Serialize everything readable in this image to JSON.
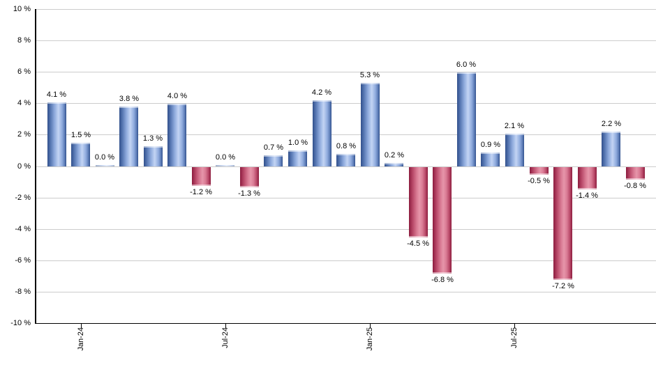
{
  "chart_data": {
    "type": "bar",
    "title": "",
    "description": "Monthly percentage returns bar chart, positive months blue, negative months red",
    "y_axis": {
      "unit": "%",
      "min": -10,
      "max": 10,
      "step": 2,
      "grid": true,
      "tick_labels": [
        "10 %",
        "8 %",
        "6 %",
        "4 %",
        "2 %",
        "0 %",
        "-2 %",
        "-4 %",
        "-6 %",
        "-8 %",
        "-10 %"
      ]
    },
    "x_axis": {
      "tick_labels": [
        {
          "bar_index": 1,
          "label": "Jan-24"
        },
        {
          "bar_index": 7,
          "label": "Jul-24"
        },
        {
          "bar_index": 13,
          "label": "Jan-25"
        },
        {
          "bar_index": 19,
          "label": "Jul-25"
        }
      ]
    },
    "bars": [
      {
        "value": 4.1,
        "label": "4.1 %"
      },
      {
        "value": 1.5,
        "label": "1.5 %"
      },
      {
        "value": 0.0,
        "label": "0.0 %"
      },
      {
        "value": 3.8,
        "label": "3.8 %"
      },
      {
        "value": 1.3,
        "label": "1.3 %"
      },
      {
        "value": 4.0,
        "label": "4.0 %"
      },
      {
        "value": -1.2,
        "label": "-1.2 %"
      },
      {
        "value": 0.0,
        "label": "0.0 %"
      },
      {
        "value": -1.3,
        "label": "-1.3 %"
      },
      {
        "value": 0.7,
        "label": "0.7 %"
      },
      {
        "value": 1.0,
        "label": "1.0 %"
      },
      {
        "value": 4.2,
        "label": "4.2 %"
      },
      {
        "value": 0.8,
        "label": "0.8 %"
      },
      {
        "value": 5.3,
        "label": "5.3 %"
      },
      {
        "value": 0.2,
        "label": "0.2 %"
      },
      {
        "value": -4.5,
        "label": "-4.5 %"
      },
      {
        "value": -6.8,
        "label": "-6.8 %"
      },
      {
        "value": 6.0,
        "label": "6.0 %"
      },
      {
        "value": 0.9,
        "label": "0.9 %"
      },
      {
        "value": 2.1,
        "label": "2.1 %"
      },
      {
        "value": -0.5,
        "label": "-0.5 %"
      },
      {
        "value": -7.2,
        "label": "-7.2 %"
      },
      {
        "value": -1.4,
        "label": "-1.4 %"
      },
      {
        "value": 2.2,
        "label": "2.2 %"
      },
      {
        "value": -0.8,
        "label": "-0.8 %"
      }
    ],
    "colors": {
      "positive_bar": "#6f8fc8",
      "positive_bar_edge": "#31508c",
      "positive_bar_highlight": "#c3d4f4",
      "negative_bar": "#c9506f",
      "negative_bar_edge": "#8c1c3e",
      "negative_bar_highlight": "#e695aa",
      "gridline": "#cccccc",
      "axis": "#000000",
      "text": "#000000",
      "background": "#ffffff"
    },
    "legend": null
  }
}
